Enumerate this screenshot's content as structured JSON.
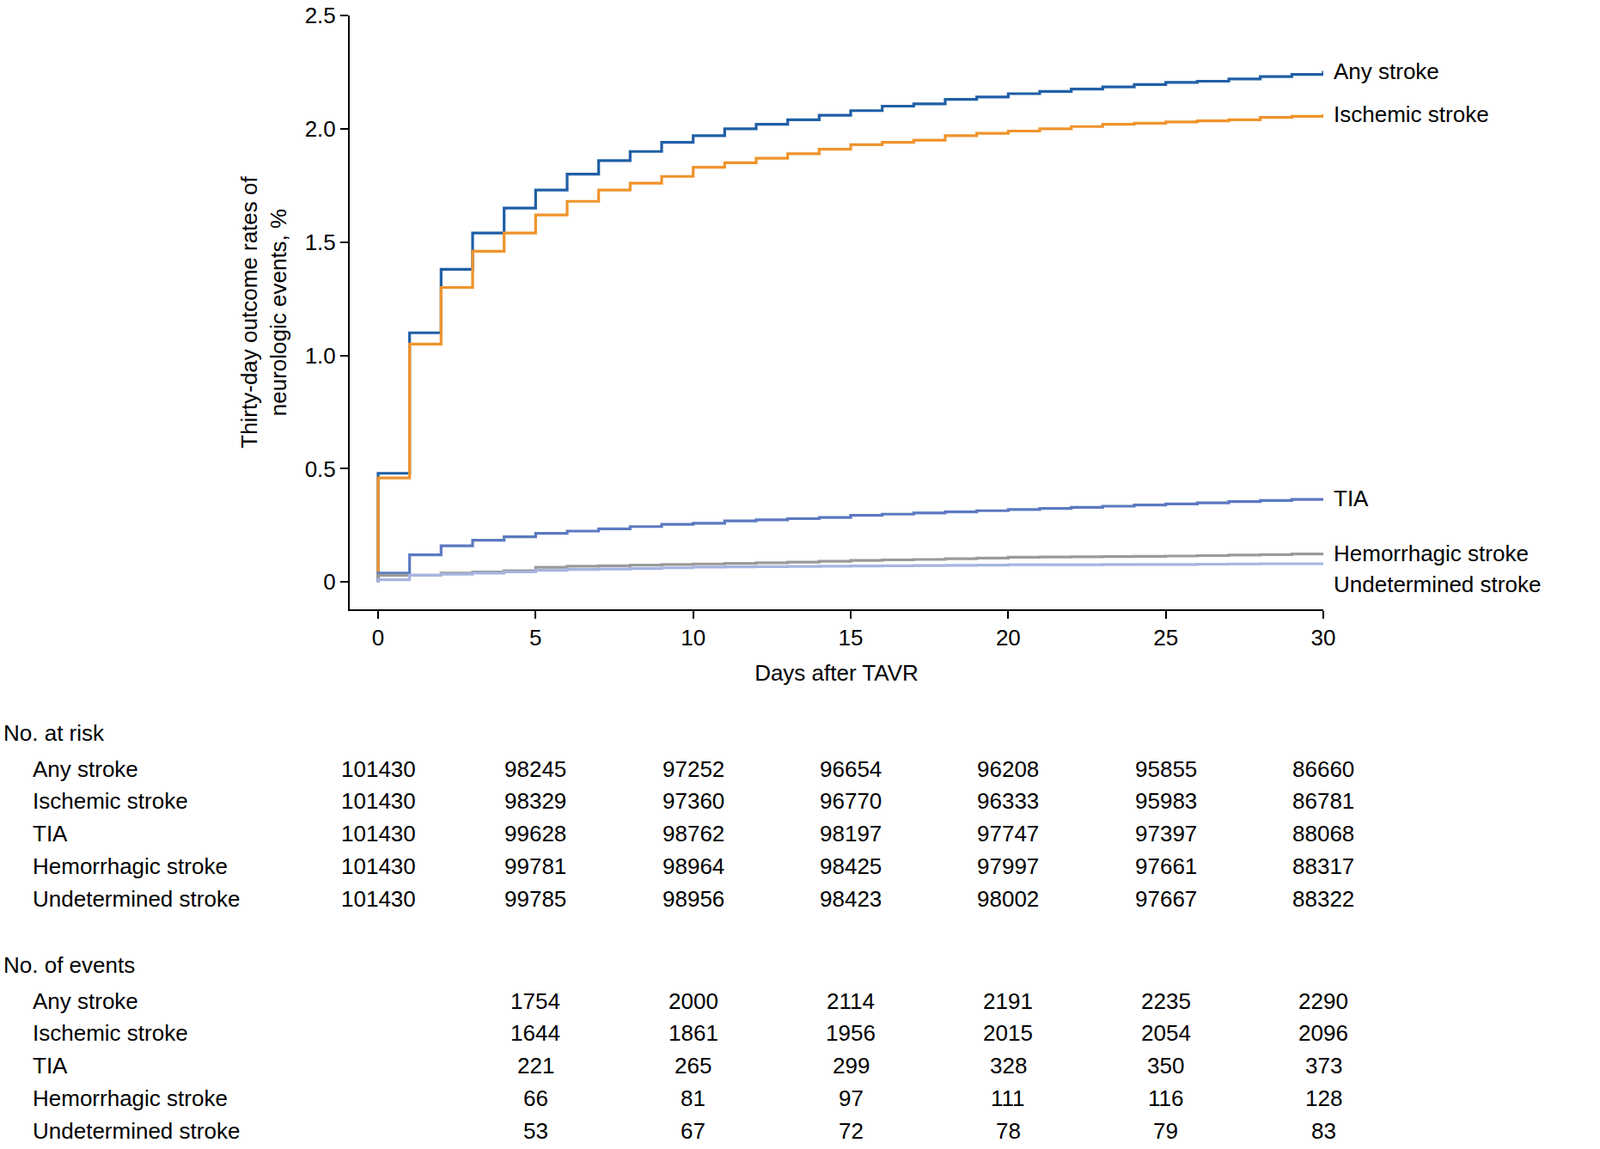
{
  "chart_data": {
    "type": "line",
    "line_style": "step",
    "x_label": "Days after TAVR",
    "y_label": "Thirty-day outcome rates of\nneurologic events, %",
    "x": [
      0,
      0,
      1,
      2,
      3,
      4,
      5,
      6,
      7,
      8,
      9,
      10,
      11,
      12,
      13,
      14,
      15,
      16,
      17,
      18,
      19,
      20,
      21,
      22,
      23,
      24,
      25,
      26,
      27,
      28,
      29,
      30
    ],
    "series": [
      {
        "name": "Any stroke",
        "color": "#1f5fa6",
        "values": [
          0,
          0.48,
          1.1,
          1.38,
          1.54,
          1.65,
          1.73,
          1.8,
          1.86,
          1.9,
          1.94,
          1.97,
          2.0,
          2.02,
          2.04,
          2.06,
          2.08,
          2.1,
          2.11,
          2.13,
          2.14,
          2.155,
          2.165,
          2.175,
          2.185,
          2.195,
          2.205,
          2.21,
          2.22,
          2.23,
          2.24,
          2.255
        ]
      },
      {
        "name": "Ischemic stroke",
        "color": "#f0932b",
        "values": [
          0,
          0.46,
          1.05,
          1.3,
          1.46,
          1.54,
          1.62,
          1.68,
          1.73,
          1.76,
          1.79,
          1.83,
          1.85,
          1.87,
          1.89,
          1.91,
          1.93,
          1.94,
          1.95,
          1.97,
          1.98,
          1.99,
          2.0,
          2.01,
          2.02,
          2.025,
          2.03,
          2.035,
          2.04,
          2.05,
          2.055,
          2.065
        ]
      },
      {
        "name": "TIA",
        "color": "#5b79c0",
        "values": [
          0,
          0.04,
          0.12,
          0.16,
          0.185,
          0.2,
          0.215,
          0.225,
          0.235,
          0.245,
          0.255,
          0.26,
          0.27,
          0.275,
          0.28,
          0.285,
          0.295,
          0.3,
          0.305,
          0.31,
          0.315,
          0.32,
          0.325,
          0.33,
          0.335,
          0.34,
          0.345,
          0.35,
          0.355,
          0.36,
          0.365,
          0.37
        ]
      },
      {
        "name": "Hemorrhagic stroke",
        "color": "#9a9a9a",
        "values": [
          0,
          0.03,
          0.03,
          0.04,
          0.045,
          0.05,
          0.065,
          0.07,
          0.072,
          0.075,
          0.078,
          0.08,
          0.082,
          0.085,
          0.088,
          0.092,
          0.096,
          0.098,
          0.1,
          0.103,
          0.106,
          0.11,
          0.111,
          0.112,
          0.113,
          0.114,
          0.115,
          0.117,
          0.119,
          0.121,
          0.124,
          0.126
        ]
      },
      {
        "name": "Undetermined stroke",
        "color": "#a6b4e2",
        "values": [
          0,
          0.01,
          0.03,
          0.035,
          0.04,
          0.045,
          0.052,
          0.056,
          0.058,
          0.06,
          0.063,
          0.066,
          0.067,
          0.068,
          0.069,
          0.07,
          0.071,
          0.072,
          0.073,
          0.074,
          0.075,
          0.077,
          0.077,
          0.077,
          0.078,
          0.078,
          0.078,
          0.079,
          0.08,
          0.081,
          0.081,
          0.082
        ]
      }
    ],
    "xlim": [
      -0.9,
      30
    ],
    "xticks": [
      0,
      5,
      10,
      15,
      20,
      25,
      30
    ],
    "ylim": [
      -0.12,
      2.5
    ],
    "yticks": [
      0,
      0.5,
      {
        "value": 1,
        "label": "1.0"
      },
      1.5,
      {
        "value": 2,
        "label": "2.0"
      },
      2.5
    ],
    "grid": false,
    "risk_table": {
      "title": "No. at risk",
      "days": [
        0,
        5,
        10,
        15,
        20,
        25,
        30
      ],
      "rows": [
        {
          "name": "Any stroke",
          "values": [
            101430,
            98245,
            97252,
            96654,
            96208,
            95855,
            86660
          ]
        },
        {
          "name": "Ischemic stroke",
          "values": [
            101430,
            98329,
            97360,
            96770,
            96333,
            95983,
            86781
          ]
        },
        {
          "name": "TIA",
          "values": [
            101430,
            99628,
            98762,
            98197,
            97747,
            97397,
            88068
          ]
        },
        {
          "name": "Hemorrhagic stroke",
          "values": [
            101430,
            99781,
            98964,
            98425,
            97997,
            97661,
            88317
          ]
        },
        {
          "name": "Undetermined stroke",
          "values": [
            101430,
            99785,
            98956,
            98423,
            98002,
            97667,
            88322
          ]
        }
      ]
    },
    "events_table": {
      "title": "No. of events",
      "days": [
        5,
        10,
        15,
        20,
        25,
        30
      ],
      "rows": [
        {
          "name": "Any stroke",
          "values": [
            1754,
            2000,
            2114,
            2191,
            2235,
            2290
          ]
        },
        {
          "name": "Ischemic stroke",
          "values": [
            1644,
            1861,
            1956,
            2015,
            2054,
            2096
          ]
        },
        {
          "name": "TIA",
          "values": [
            221,
            265,
            299,
            328,
            350,
            373
          ]
        },
        {
          "name": "Hemorrhagic stroke",
          "values": [
            66,
            81,
            97,
            111,
            116,
            128
          ]
        },
        {
          "name": "Undetermined stroke",
          "values": [
            53,
            67,
            72,
            78,
            79,
            83
          ]
        }
      ]
    }
  }
}
